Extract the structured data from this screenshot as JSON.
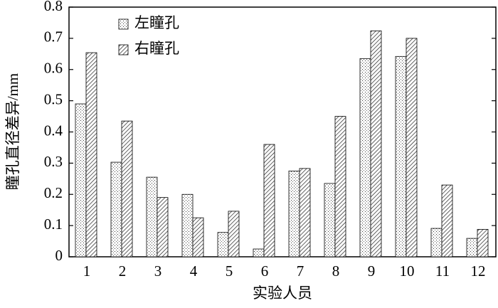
{
  "chart_data": {
    "type": "bar",
    "xlabel": "实验人员",
    "ylabel": "瞳孔直径差异/mm",
    "categories": [
      "1",
      "2",
      "3",
      "4",
      "5",
      "6",
      "7",
      "8",
      "9",
      "10",
      "11",
      "12"
    ],
    "series": [
      {
        "name": "左瞳孔",
        "pattern": "dots",
        "values": [
          0.49,
          0.303,
          0.255,
          0.2,
          0.078,
          0.025,
          0.275,
          0.235,
          0.635,
          0.642,
          0.091,
          0.059
        ]
      },
      {
        "name": "右瞳孔",
        "pattern": "hatch",
        "values": [
          0.654,
          0.435,
          0.19,
          0.125,
          0.146,
          0.36,
          0.283,
          0.45,
          0.724,
          0.7,
          0.23,
          0.088
        ]
      }
    ],
    "ylim": [
      0,
      0.8
    ],
    "yticks": [
      0,
      0.1,
      0.2,
      0.3,
      0.4,
      0.5,
      0.6,
      0.7,
      0.8
    ],
    "legend": "upper-left"
  }
}
